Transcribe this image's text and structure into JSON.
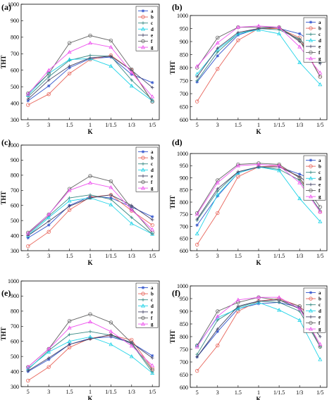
{
  "chart_data": [
    {
      "type": "line",
      "label": "(a)",
      "categories": [
        "5",
        "3",
        "1.5",
        "1",
        "1/1.5",
        "1/3",
        "1/5"
      ],
      "xlabel": "K",
      "ylabel": "THT",
      "ylim": [
        300,
        1000
      ],
      "yticks": [
        300,
        400,
        500,
        600,
        700,
        800,
        900,
        1000
      ],
      "grid": false,
      "legend": "top-right",
      "series": [
        {
          "name": "a",
          "color": "#3355cc",
          "marker": "star",
          "values": [
            415,
            505,
            615,
            670,
            680,
            575,
            525
          ]
        },
        {
          "name": "b",
          "color": "#e8665c",
          "marker": "circle",
          "values": [
            390,
            455,
            580,
            665,
            690,
            600,
            410
          ]
        },
        {
          "name": "c",
          "color": "#3a8a84",
          "marker": "plus",
          "values": [
            440,
            560,
            660,
            690,
            685,
            540,
            420
          ]
        },
        {
          "name": "d",
          "color": "#22d4e8",
          "marker": "triangle",
          "values": [
            450,
            580,
            665,
            670,
            625,
            505,
            415
          ]
        },
        {
          "name": "e",
          "color": "#444466",
          "marker": "plus",
          "values": [
            425,
            540,
            625,
            675,
            685,
            600,
            495
          ]
        },
        {
          "name": "f",
          "color": "#666666",
          "marker": "circle",
          "values": [
            460,
            580,
            765,
            810,
            780,
            605,
            410
          ]
        },
        {
          "name": "g",
          "color": "#ee55ee",
          "marker": "triangle",
          "values": [
            455,
            600,
            710,
            765,
            740,
            585,
            440
          ]
        }
      ]
    },
    {
      "type": "line",
      "label": "(b)",
      "categories": [
        "5",
        "3",
        "1.5",
        "1",
        "1/1.5",
        "1/3",
        "1/5"
      ],
      "xlabel": "K",
      "ylabel": "THT",
      "ylim": [
        600,
        1000
      ],
      "yticks": [
        600,
        650,
        700,
        750,
        800,
        850,
        900,
        950,
        1000
      ],
      "grid": false,
      "legend": "top-right",
      "series": [
        {
          "name": "a",
          "color": "#3355cc",
          "marker": "star",
          "values": [
            745,
            845,
            925,
            950,
            950,
            930,
            880
          ]
        },
        {
          "name": "b",
          "color": "#e8665c",
          "marker": "circle",
          "values": [
            670,
            795,
            905,
            950,
            950,
            915,
            765
          ]
        },
        {
          "name": "c",
          "color": "#3a8a84",
          "marker": "plus",
          "values": [
            750,
            860,
            930,
            950,
            945,
            910,
            820
          ]
        },
        {
          "name": "d",
          "color": "#22d4e8",
          "marker": "triangle",
          "values": [
            775,
            870,
            930,
            945,
            930,
            820,
            735
          ]
        },
        {
          "name": "e",
          "color": "#444466",
          "marker": "plus",
          "values": [
            765,
            875,
            935,
            950,
            955,
            900,
            815
          ]
        },
        {
          "name": "f",
          "color": "#666666",
          "marker": "circle",
          "values": [
            800,
            915,
            955,
            955,
            955,
            905,
            765
          ]
        },
        {
          "name": "g",
          "color": "#ee55ee",
          "marker": "triangle",
          "values": [
            805,
            895,
            955,
            960,
            955,
            880,
            780
          ]
        }
      ]
    },
    {
      "type": "line",
      "label": "(c)",
      "categories": [
        "5",
        "3",
        "1.5",
        "1",
        "1/1.5",
        "1/3",
        "1/5"
      ],
      "xlabel": "K",
      "ylabel": "THT",
      "ylim": [
        300,
        1000
      ],
      "yticks": [
        300,
        400,
        500,
        600,
        700,
        800,
        900,
        1000
      ],
      "grid": false,
      "legend": "top-right",
      "series": [
        {
          "name": "a",
          "color": "#3355cc",
          "marker": "star",
          "values": [
            385,
            470,
            600,
            660,
            650,
            590,
            525
          ]
        },
        {
          "name": "b",
          "color": "#e8665c",
          "marker": "circle",
          "values": [
            330,
            425,
            570,
            655,
            670,
            565,
            470
          ]
        },
        {
          "name": "c",
          "color": "#3a8a84",
          "marker": "plus",
          "values": [
            410,
            530,
            650,
            670,
            640,
            520,
            410
          ]
        },
        {
          "name": "d",
          "color": "#22d4e8",
          "marker": "triangle",
          "values": [
            400,
            520,
            630,
            650,
            605,
            480,
            410
          ]
        },
        {
          "name": "e",
          "color": "#444466",
          "marker": "plus",
          "values": [
            400,
            495,
            595,
            650,
            670,
            600,
            505
          ]
        },
        {
          "name": "f",
          "color": "#666666",
          "marker": "circle",
          "values": [
            420,
            540,
            710,
            795,
            760,
            580,
            420
          ]
        },
        {
          "name": "g",
          "color": "#ee55ee",
          "marker": "triangle",
          "values": [
            415,
            540,
            700,
            750,
            720,
            570,
            440
          ]
        }
      ]
    },
    {
      "type": "line",
      "label": "(d)",
      "categories": [
        "5",
        "3",
        "1.5",
        "1",
        "1/1.5",
        "1/3",
        "1/5"
      ],
      "xlabel": "K",
      "ylabel": "THT",
      "ylim": [
        600,
        1000
      ],
      "yticks": [
        600,
        650,
        700,
        750,
        800,
        850,
        900,
        950,
        1000
      ],
      "grid": false,
      "legend": "top-right",
      "series": [
        {
          "name": "a",
          "color": "#3355cc",
          "marker": "star",
          "values": [
            705,
            825,
            920,
            945,
            945,
            915,
            880
          ]
        },
        {
          "name": "b",
          "color": "#e8665c",
          "marker": "circle",
          "values": [
            625,
            755,
            905,
            945,
            950,
            900,
            760
          ]
        },
        {
          "name": "c",
          "color": "#3a8a84",
          "marker": "plus",
          "values": [
            725,
            845,
            925,
            945,
            935,
            890,
            765
          ]
        },
        {
          "name": "d",
          "color": "#22d4e8",
          "marker": "triangle",
          "values": [
            670,
            830,
            920,
            945,
            930,
            815,
            720
          ]
        },
        {
          "name": "e",
          "color": "#444466",
          "marker": "plus",
          "values": [
            730,
            855,
            925,
            945,
            945,
            905,
            840
          ]
        },
        {
          "name": "f",
          "color": "#666666",
          "marker": "circle",
          "values": [
            755,
            890,
            955,
            960,
            955,
            900,
            780
          ]
        },
        {
          "name": "g",
          "color": "#ee55ee",
          "marker": "triangle",
          "values": [
            750,
            880,
            950,
            955,
            950,
            880,
            760
          ]
        }
      ]
    },
    {
      "type": "line",
      "label": "(e)",
      "categories": [
        "5",
        "3",
        "1.5",
        "1",
        "1/1.5",
        "1/3",
        "1/5"
      ],
      "xlabel": "K",
      "ylabel": "THT",
      "ylim": [
        300,
        1000
      ],
      "yticks": [
        300,
        400,
        500,
        600,
        700,
        800,
        900,
        1000
      ],
      "grid": false,
      "legend": "top-right",
      "series": [
        {
          "name": "a",
          "color": "#3355cc",
          "marker": "star",
          "values": [
            400,
            480,
            580,
            620,
            630,
            590,
            505
          ]
        },
        {
          "name": "b",
          "color": "#e8665c",
          "marker": "circle",
          "values": [
            340,
            430,
            560,
            620,
            640,
            610,
            420
          ]
        },
        {
          "name": "c",
          "color": "#3a8a84",
          "marker": "plus",
          "values": [
            415,
            540,
            645,
            665,
            640,
            585,
            395
          ]
        },
        {
          "name": "d",
          "color": "#22d4e8",
          "marker": "triangle",
          "values": [
            420,
            530,
            600,
            630,
            580,
            500,
            390
          ]
        },
        {
          "name": "e",
          "color": "#444466",
          "marker": "plus",
          "values": [
            405,
            490,
            580,
            615,
            645,
            590,
            490
          ]
        },
        {
          "name": "f",
          "color": "#666666",
          "marker": "circle",
          "values": [
            430,
            550,
            735,
            780,
            725,
            590,
            410
          ]
        },
        {
          "name": "g",
          "color": "#ee55ee",
          "marker": "triangle",
          "values": [
            430,
            550,
            690,
            730,
            665,
            570,
            440
          ]
        }
      ]
    },
    {
      "type": "line",
      "label": "(f)",
      "categories": [
        "5",
        "3",
        "1.5",
        "1",
        "1/1.5",
        "1/3",
        "1/5"
      ],
      "xlabel": "K",
      "ylabel": "THT",
      "ylim": [
        600,
        1000
      ],
      "yticks": [
        600,
        650,
        700,
        750,
        800,
        850,
        900,
        950,
        1000
      ],
      "grid": false,
      "legend": "top-right",
      "series": [
        {
          "name": "a",
          "color": "#3355cc",
          "marker": "star",
          "values": [
            720,
            820,
            910,
            930,
            935,
            915,
            870
          ]
        },
        {
          "name": "b",
          "color": "#e8665c",
          "marker": "circle",
          "values": [
            665,
            765,
            900,
            940,
            950,
            920,
            835
          ]
        },
        {
          "name": "c",
          "color": "#3a8a84",
          "marker": "plus",
          "values": [
            730,
            865,
            915,
            940,
            935,
            900,
            760
          ]
        },
        {
          "name": "d",
          "color": "#22d4e8",
          "marker": "triangle",
          "values": [
            765,
            875,
            910,
            935,
            905,
            865,
            710
          ]
        },
        {
          "name": "e",
          "color": "#444466",
          "marker": "plus",
          "values": [
            720,
            830,
            920,
            940,
            945,
            910,
            800
          ]
        },
        {
          "name": "f",
          "color": "#666666",
          "marker": "circle",
          "values": [
            765,
            900,
            935,
            955,
            945,
            920,
            760
          ]
        },
        {
          "name": "g",
          "color": "#ee55ee",
          "marker": "triangle",
          "values": [
            760,
            880,
            945,
            955,
            955,
            910,
            770
          ]
        }
      ]
    }
  ]
}
